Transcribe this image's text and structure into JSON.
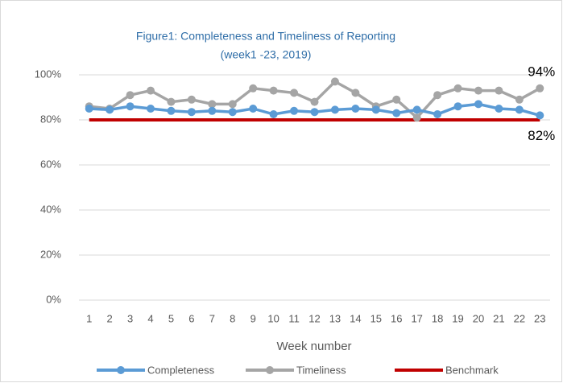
{
  "chart_data": {
    "type": "line",
    "title": "Figure1: Completeness and Timeliness of Reporting",
    "subtitle": "(week1 -23, 2019)",
    "x_label": "Week number",
    "categories": [
      "1",
      "2",
      "3",
      "4",
      "5",
      "6",
      "7",
      "8",
      "9",
      "10",
      "11",
      "12",
      "13",
      "14",
      "15",
      "16",
      "17",
      "18",
      "19",
      "20",
      "21",
      "22",
      "23"
    ],
    "series": [
      {
        "name": "Completeness",
        "color": "#5b9bd5",
        "marker": true,
        "values": [
          85,
          84.5,
          86,
          85,
          84,
          83.5,
          84,
          83.5,
          85,
          82.5,
          84,
          83.5,
          84.5,
          85,
          84.5,
          83,
          84.5,
          82.5,
          86,
          87,
          85,
          84.5,
          82
        ],
        "value_labels": [
          null,
          null,
          null,
          null,
          null,
          null,
          null,
          null,
          null,
          null,
          null,
          null,
          null,
          null,
          null,
          null,
          null,
          null,
          null,
          null,
          null,
          null,
          "82%"
        ]
      },
      {
        "name": "Timeliness",
        "color": "#a5a5a5",
        "marker": true,
        "values": [
          86,
          85,
          91,
          93,
          88,
          89,
          87,
          87,
          94,
          93,
          92,
          88,
          97,
          92,
          86,
          89,
          81,
          91,
          94,
          93,
          93,
          89,
          94
        ],
        "value_labels": [
          null,
          null,
          null,
          null,
          null,
          null,
          null,
          null,
          null,
          null,
          null,
          null,
          null,
          null,
          null,
          null,
          null,
          null,
          null,
          null,
          null,
          null,
          "94%"
        ]
      },
      {
        "name": "Benchmark",
        "color": "#c00000",
        "marker": false,
        "values": [
          80,
          80,
          80,
          80,
          80,
          80,
          80,
          80,
          80,
          80,
          80,
          80,
          80,
          80,
          80,
          80,
          80,
          80,
          80,
          80,
          80,
          80,
          80
        ]
      }
    ],
    "ylim": [
      0,
      100
    ],
    "yticks": [
      {
        "value": 0,
        "label": "0%"
      },
      {
        "value": 20,
        "label": "20%"
      },
      {
        "value": 40,
        "label": "40%"
      },
      {
        "value": 60,
        "label": "60%"
      },
      {
        "value": 80,
        "label": "80%"
      },
      {
        "value": 100,
        "label": "100%"
      }
    ],
    "grid": true,
    "legend": "bottom"
  }
}
